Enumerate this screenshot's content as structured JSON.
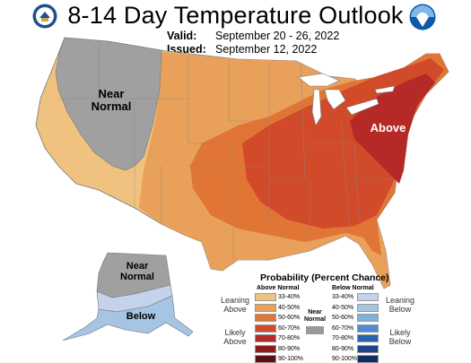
{
  "header": {
    "title": "8-14 Day Temperature Outlook",
    "valid_label": "Valid:",
    "valid_value": "September 20 - 26, 2022",
    "issued_label": "Issued:",
    "issued_value": "September 12, 2022"
  },
  "logos": {
    "left": "doc-seal-icon",
    "right": "noaa-logo-icon"
  },
  "map_labels": {
    "west": "Near Normal",
    "east": "Above",
    "alaska_north": "Near Normal",
    "alaska_south": "Below"
  },
  "legend": {
    "title": "Probability (Percent Chance)",
    "above_header": "Above Normal",
    "below_header": "Below Normal",
    "near_normal_label": "Near Normal",
    "leaning_above": "Leaning Above",
    "likely_above": "Likely Above",
    "leaning_below": "Leaning Below",
    "likely_below": "Likely Below",
    "above_bins": [
      {
        "label": "33-40%",
        "color": "#f0c27f"
      },
      {
        "label": "40-50%",
        "color": "#e8a05a"
      },
      {
        "label": "50-60%",
        "color": "#e07535"
      },
      {
        "label": "60-70%",
        "color": "#d14a2a"
      },
      {
        "label": "70-80%",
        "color": "#b52a26"
      },
      {
        "label": "80-90%",
        "color": "#8e1b1e"
      },
      {
        "label": "90-100%",
        "color": "#5c0e12"
      }
    ],
    "below_bins": [
      {
        "label": "33-40%",
        "color": "#c5d3ea"
      },
      {
        "label": "40-50%",
        "color": "#a6c4e4"
      },
      {
        "label": "50-60%",
        "color": "#7eb0dc"
      },
      {
        "label": "60-70%",
        "color": "#4f8ccb"
      },
      {
        "label": "70-80%",
        "color": "#2a63ad"
      },
      {
        "label": "80-90%",
        "color": "#1c4488"
      },
      {
        "label": "90-100%",
        "color": "#122c62"
      }
    ],
    "near_normal_color": "#999999"
  }
}
